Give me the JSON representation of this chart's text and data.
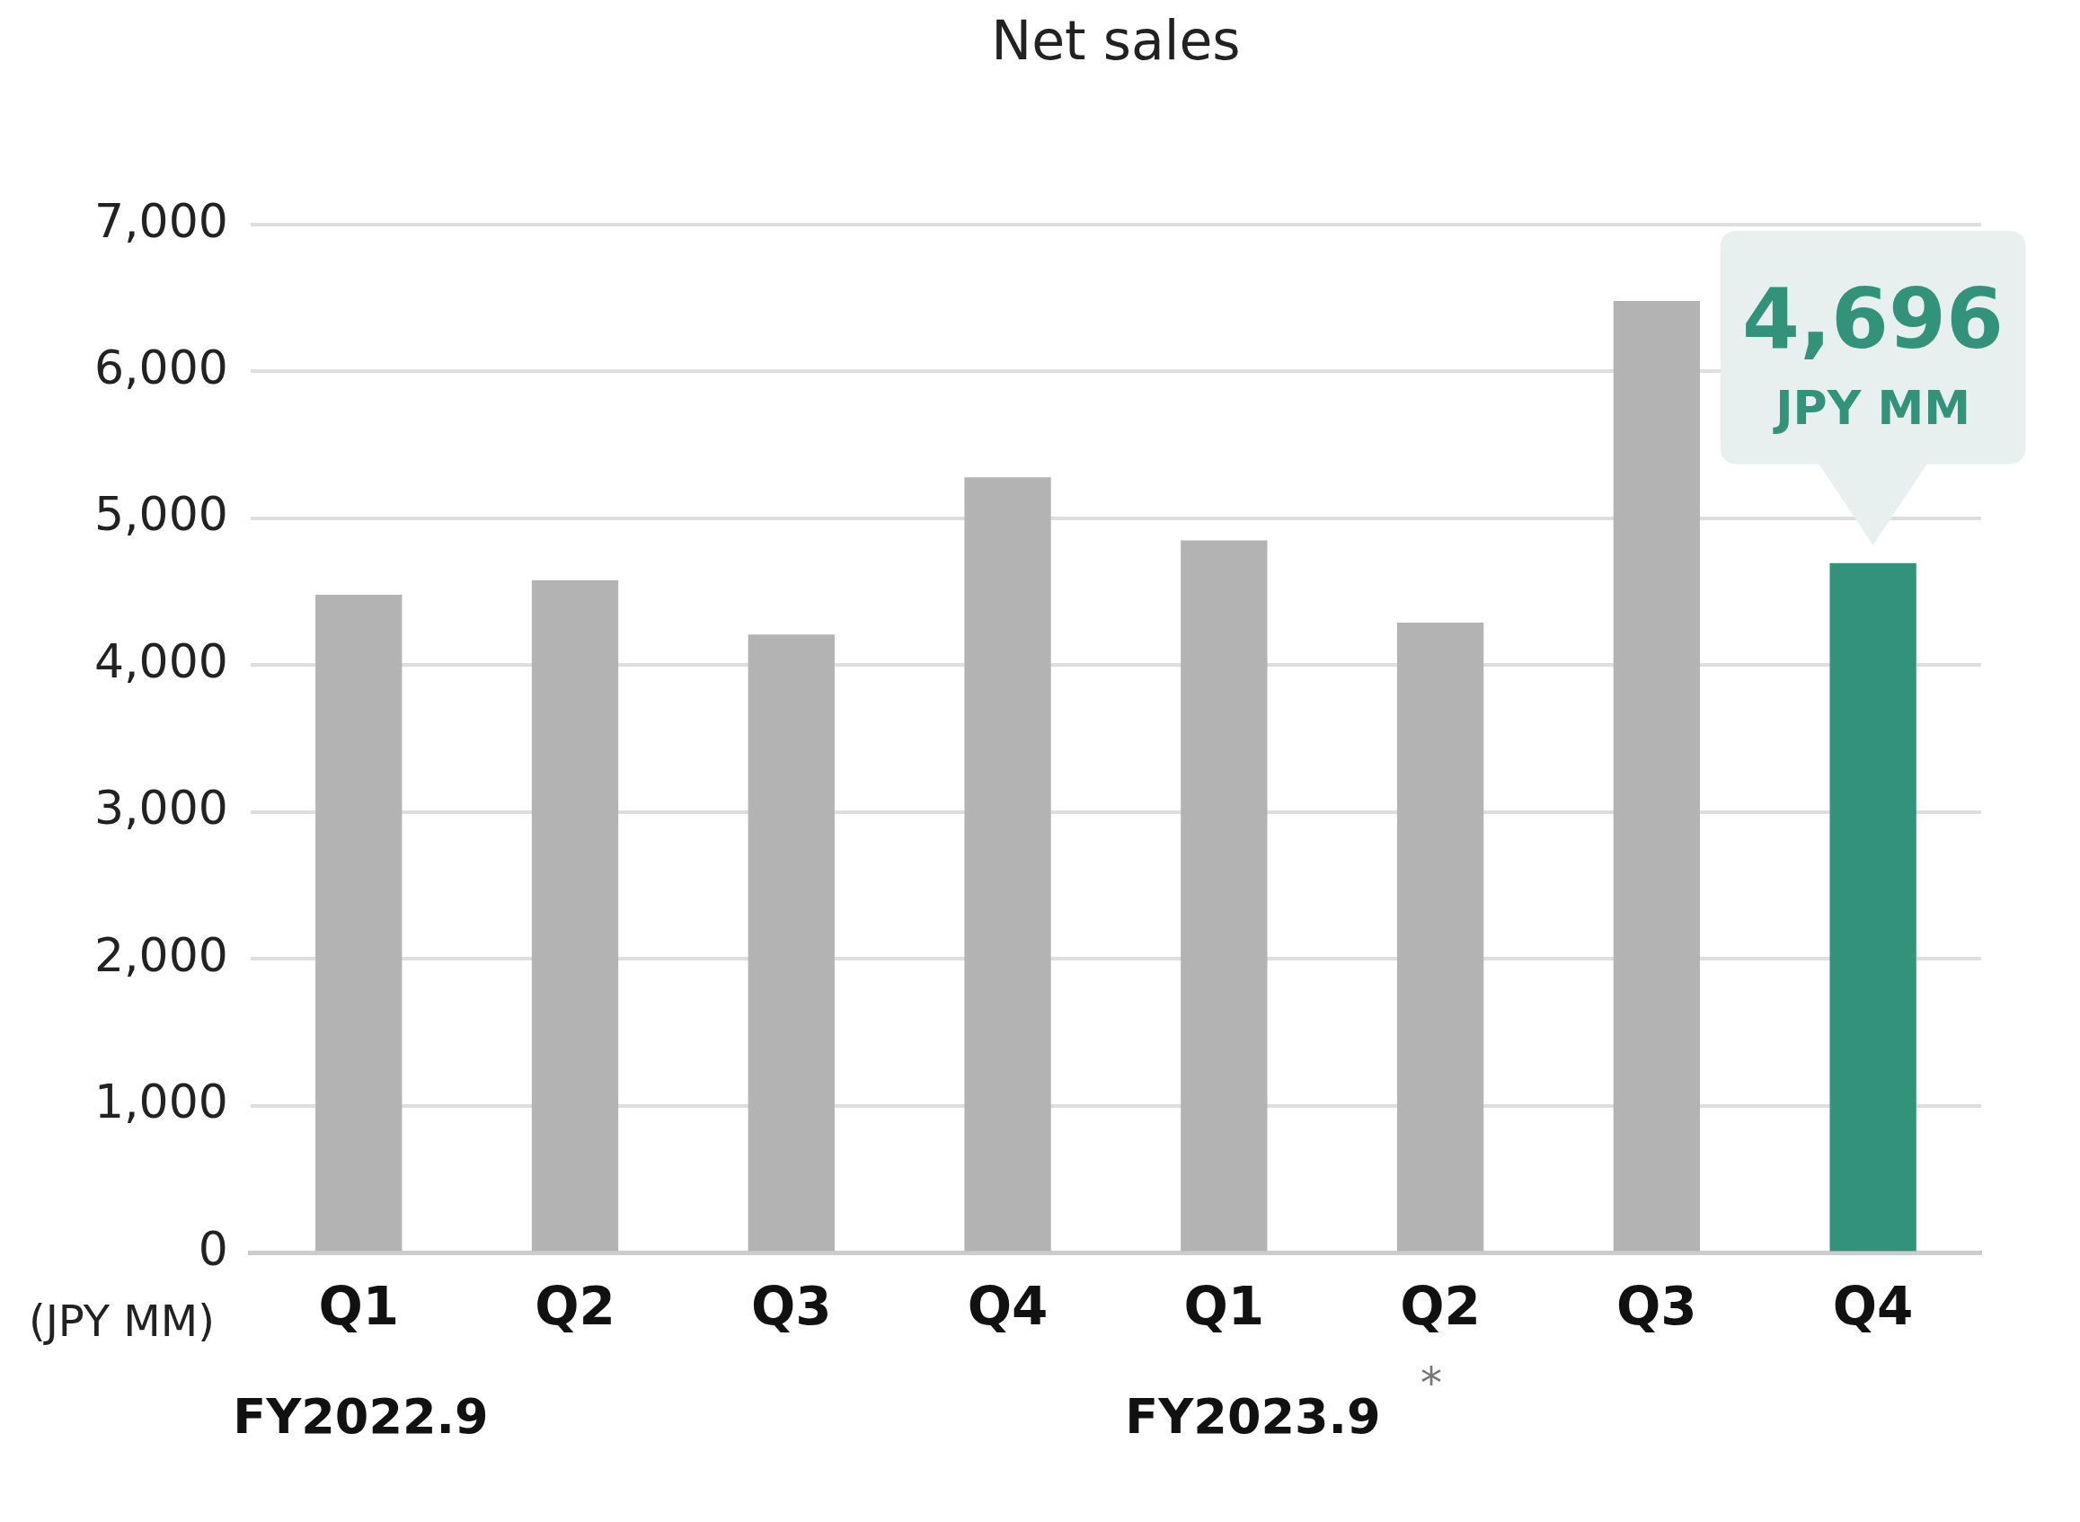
{
  "chart_data": {
    "type": "bar",
    "title": "Net sales",
    "ylabel": "(JPY MM)",
    "categories": [
      "Q1",
      "Q2",
      "Q3",
      "Q4",
      "Q1",
      "Q2",
      "Q3",
      "Q4"
    ],
    "values": [
      4480,
      4580,
      4210,
      5280,
      4850,
      4290,
      6480,
      4696
    ],
    "colors": [
      "#b3b3b3",
      "#b3b3b3",
      "#b3b3b3",
      "#b3b3b3",
      "#b3b3b3",
      "#b3b3b3",
      "#b3b3b3",
      "#33937a"
    ],
    "value_labels": [
      null,
      null,
      null,
      null,
      null,
      null,
      null,
      "4,696"
    ],
    "annotations": [
      "JPY MM",
      "FY2022.9",
      "FY2023.9",
      "*"
    ],
    "ylim": [
      0,
      7000
    ],
    "yticks": [
      {
        "value": 0,
        "label": "0"
      },
      {
        "value": 1000,
        "label": "1,000"
      },
      {
        "value": 2000,
        "label": "2,000"
      },
      {
        "value": 3000,
        "label": "3,000"
      },
      {
        "value": 4000,
        "label": "4,000"
      },
      {
        "value": 5000,
        "label": "5,000"
      },
      {
        "value": 6000,
        "label": "6,000"
      },
      {
        "value": 7000,
        "label": "7,000"
      }
    ],
    "grid": "y",
    "legend": false
  }
}
